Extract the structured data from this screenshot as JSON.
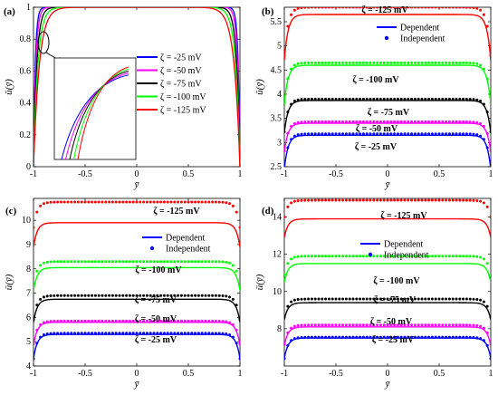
{
  "panels": [
    {
      "label": "(a)",
      "ylabel": "ū(ȳ)",
      "xlabel": "ȳ",
      "xlim": [
        -1,
        1
      ],
      "ylim": [
        0,
        1
      ],
      "xticks": [
        "-1",
        "-0.5",
        "0",
        "0.5",
        "1"
      ],
      "yticks": [
        "0",
        "0.2",
        "0.4",
        "0.6",
        "0.8",
        "1"
      ],
      "legend": [
        "ζ = -25 mV",
        "ζ = -50 mV",
        "ζ = -75 mV",
        "ζ = -100 mV",
        "ζ = -125 mV"
      ],
      "colors": [
        "#0000ff",
        "#ff00ff",
        "#000000",
        "#00ff00",
        "#ff0000"
      ]
    },
    {
      "label": "(b)",
      "ylabel": "ū(ȳ)",
      "xlabel": "ȳ",
      "xlim": [
        -1,
        1
      ],
      "ylim": [
        2.5,
        5.8
      ],
      "xticks": [
        "-1",
        "-0.5",
        "0",
        "0.5",
        "1"
      ],
      "yticks": [
        "2.5",
        "3",
        "3.5",
        "4",
        "4.5",
        "5",
        "5.5"
      ],
      "legend": [
        "Dependent",
        "Independent"
      ],
      "annotations": [
        "ζ = -125 mV",
        "ζ = -100 mV",
        "ζ = -75 mV",
        "ζ = -50 mV",
        "ζ = -25 mV"
      ]
    },
    {
      "label": "(c)",
      "ylabel": "ū(ȳ)",
      "xlabel": "ȳ",
      "xlim": [
        -1,
        1
      ],
      "ylim": [
        4,
        10.9
      ],
      "xticks": [
        "-1",
        "-0.5",
        "0",
        "0.5",
        "1"
      ],
      "yticks": [
        "4",
        "5",
        "6",
        "7",
        "8",
        "9",
        "10"
      ],
      "legend": [
        "Dependent",
        "Independent"
      ],
      "annotations": [
        "ζ = -125 mV",
        "ζ = -100 mV",
        "ζ = -75 mV",
        "ζ = -50 mV",
        "ζ = -25 mV"
      ]
    },
    {
      "label": "(d)",
      "ylabel": "ū(ȳ)",
      "xlabel": "ȳ",
      "xlim": [
        -1,
        1
      ],
      "ylim": [
        6,
        15
      ],
      "xticks": [
        "-1",
        "-0.5",
        "0",
        "0.5",
        "1"
      ],
      "yticks": [
        "8",
        "10",
        "12",
        "14"
      ],
      "legend": [
        "Dependent",
        "Independent"
      ],
      "annotations": [
        "ζ = -125 mV",
        "ζ = -100 mV",
        "ζ = -75 mV",
        "ζ = -50 mV",
        "ζ = -25 mV"
      ]
    }
  ],
  "chart_data": [
    {
      "type": "line",
      "panel": "(a)",
      "ylim": [
        0,
        1
      ],
      "inset": true,
      "series": [
        {
          "name": "ζ = -25 mV",
          "color": "#0000ff",
          "center": 1.0,
          "wall": 0.0
        },
        {
          "name": "ζ = -50 mV",
          "color": "#ff00ff",
          "center": 1.0,
          "wall": 0.0
        },
        {
          "name": "ζ = -75 mV",
          "color": "#000000",
          "center": 1.0,
          "wall": 0.0
        },
        {
          "name": "ζ = -100 mV",
          "color": "#00ff00",
          "center": 1.0,
          "wall": 0.0
        },
        {
          "name": "ζ = -125 mV",
          "color": "#ff0000",
          "center": 1.0,
          "wall": 0.0
        }
      ]
    },
    {
      "type": "line",
      "panel": "(b)",
      "ylim": [
        2.5,
        5.8
      ],
      "series": [
        {
          "zeta": "-25 mV",
          "color": "#0000ff",
          "dependent_center": 3.15,
          "dependent_wall": 2.45,
          "independent_center": 3.18,
          "independent_wall": 2.45
        },
        {
          "zeta": "-50 mV",
          "color": "#ff00ff",
          "dependent_center": 3.4,
          "dependent_wall": 2.8,
          "independent_center": 3.43,
          "independent_wall": 2.82
        },
        {
          "zeta": "-75 mV",
          "color": "#000000",
          "dependent_center": 3.87,
          "dependent_wall": 3.2,
          "independent_center": 3.9,
          "independent_wall": 3.22
        },
        {
          "zeta": "-100 mV",
          "color": "#00ff00",
          "dependent_center": 4.6,
          "dependent_wall": 3.8,
          "independent_center": 4.65,
          "independent_wall": 3.82
        },
        {
          "zeta": "-125 mV",
          "color": "#ff0000",
          "dependent_center": 5.65,
          "dependent_wall": 4.7,
          "independent_center": 5.8,
          "independent_wall": 4.8
        }
      ]
    },
    {
      "type": "line",
      "panel": "(c)",
      "ylim": [
        4,
        10.9
      ],
      "series": [
        {
          "zeta": "-25 mV",
          "color": "#0000ff",
          "dependent_center": 5.3,
          "dependent_wall": 4.3,
          "independent_center": 5.35,
          "independent_wall": 4.3
        },
        {
          "zeta": "-50 mV",
          "color": "#ff00ff",
          "dependent_center": 5.8,
          "dependent_wall": 4.85,
          "independent_center": 5.85,
          "independent_wall": 4.9
        },
        {
          "zeta": "-75 mV",
          "color": "#000000",
          "dependent_center": 6.75,
          "dependent_wall": 5.8,
          "independent_center": 6.9,
          "independent_wall": 5.9
        },
        {
          "zeta": "-100 mV",
          "color": "#00ff00",
          "dependent_center": 8.05,
          "dependent_wall": 7.1,
          "independent_center": 8.3,
          "independent_wall": 7.3
        },
        {
          "zeta": "-125 mV",
          "color": "#ff0000",
          "dependent_center": 9.9,
          "dependent_wall": 8.9,
          "independent_center": 10.75,
          "independent_wall": 9.7
        }
      ]
    },
    {
      "type": "line",
      "panel": "(d)",
      "ylim": [
        6,
        15
      ],
      "series": [
        {
          "zeta": "-25 mV",
          "color": "#0000ff",
          "dependent_center": 7.5,
          "dependent_wall": 6.4,
          "independent_center": 7.55,
          "independent_wall": 6.4
        },
        {
          "zeta": "-50 mV",
          "color": "#ff00ff",
          "dependent_center": 8.1,
          "dependent_wall": 7.1,
          "independent_center": 8.2,
          "independent_wall": 7.15
        },
        {
          "zeta": "-75 mV",
          "color": "#000000",
          "dependent_center": 9.4,
          "dependent_wall": 8.5,
          "independent_center": 9.6,
          "independent_wall": 8.6
        },
        {
          "zeta": "-100 mV",
          "color": "#00ff00",
          "dependent_center": 11.5,
          "dependent_wall": 10.5,
          "independent_center": 11.9,
          "independent_wall": 10.9
        },
        {
          "zeta": "-125 mV",
          "color": "#ff0000",
          "dependent_center": 13.9,
          "dependent_wall": 12.9,
          "independent_center": 14.9,
          "independent_wall": 14.0
        }
      ]
    }
  ]
}
